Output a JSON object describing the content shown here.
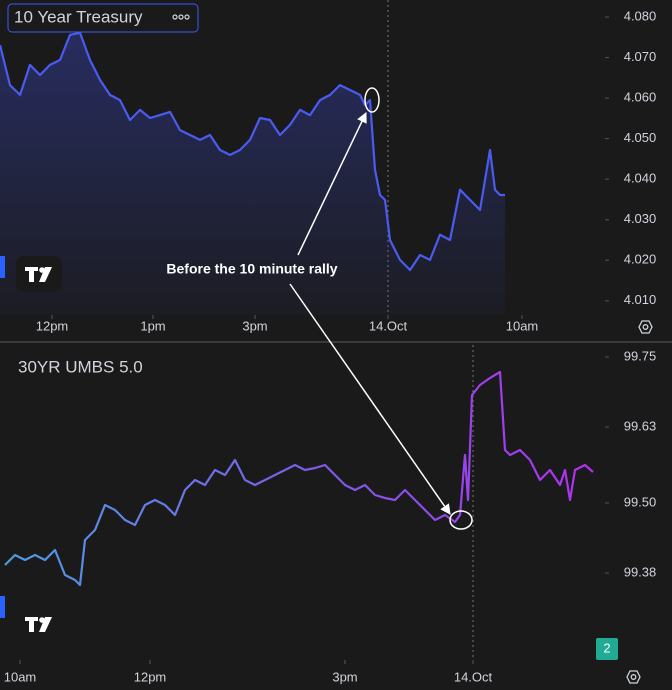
{
  "chart_data": [
    {
      "type": "line",
      "title": "10 Year Treasury",
      "annotation": "Before the 10 minute rally",
      "x": [
        0,
        2,
        4,
        6,
        8,
        10,
        12,
        14,
        16,
        18,
        20,
        22,
        24,
        26,
        28,
        30,
        32,
        34,
        36,
        38,
        40,
        42,
        44,
        46,
        48,
        50,
        52,
        54,
        56,
        58,
        60,
        62,
        64,
        66,
        68,
        70,
        72,
        73,
        74,
        75,
        76,
        77,
        78,
        80,
        82,
        84,
        86,
        88,
        90,
        92,
        94,
        96,
        98,
        99,
        100,
        101
      ],
      "series": [
        {
          "color": "#4a5cf0",
          "values": [
            4.0731,
            4.0632,
            4.0608,
            4.0682,
            4.0657,
            4.0682,
            4.0694,
            4.0756,
            4.0761,
            4.0694,
            4.0645,
            4.0608,
            4.0595,
            4.0546,
            4.0571,
            4.0551,
            4.0558,
            4.0566,
            4.0521,
            4.0509,
            4.0497,
            4.0509,
            4.0472,
            4.046,
            4.0472,
            4.0497,
            4.0551,
            4.0546,
            4.0509,
            4.0534,
            4.0571,
            4.0558,
            4.0595,
            4.0608,
            4.0632,
            4.062,
            4.0608,
            4.0583,
            4.0595,
            4.0423,
            4.0361,
            4.0349,
            4.025,
            4.0201,
            4.0176,
            4.0213,
            4.0201,
            4.0263,
            4.025,
            4.0374,
            4.0349,
            4.0324,
            4.0472,
            4.0374,
            4.0361,
            4.0361
          ]
        }
      ],
      "xlim": [
        0,
        121
      ],
      "xticks": [
        {
          "value": 10.4,
          "label": "12pm"
        },
        {
          "value": 30.6,
          "label": "1pm"
        },
        {
          "value": 51,
          "label": "3pm"
        },
        {
          "value": 77.6,
          "label": "14.Oct"
        },
        {
          "value": 104.4,
          "label": "10am"
        }
      ],
      "session_break": 3,
      "ylim": [
        4.0065,
        4.0842
      ],
      "yticks": [
        {
          "value": 4.08,
          "label": "4.080"
        },
        {
          "value": 4.07,
          "label": "4.070"
        },
        {
          "value": 4.06,
          "label": "4.060"
        },
        {
          "value": 4.05,
          "label": "4.050"
        },
        {
          "value": 4.04,
          "label": "4.040"
        },
        {
          "value": 4.03,
          "label": "4.030"
        },
        {
          "value": 4.02,
          "label": "4.020"
        },
        {
          "value": 4.01,
          "label": "4.010"
        }
      ],
      "area": true
    },
    {
      "type": "line",
      "title": "30YR UMBS 5.0",
      "badge": "2",
      "x": [
        1,
        3,
        5,
        7,
        9,
        11,
        13,
        15,
        16,
        17,
        19,
        21,
        23,
        25,
        27,
        29,
        31,
        33,
        35,
        37,
        39,
        41,
        43,
        45,
        47,
        49,
        51,
        53,
        55,
        57,
        59,
        61,
        63,
        65,
        67,
        69,
        71,
        73,
        75,
        77,
        79,
        81,
        83,
        85,
        87,
        89,
        91,
        92,
        93,
        93.6,
        94.4,
        96,
        98,
        100,
        101,
        102,
        104,
        106,
        108,
        110,
        112,
        113,
        114,
        115,
        117,
        118.6
      ],
      "series": [
        {
          "colors": [
            "#4f9be0",
            "#7a5ee8",
            "#b030f0"
          ],
          "values": [
            99.3938,
            99.411,
            99.4024,
            99.411,
            99.4024,
            99.4195,
            99.3767,
            99.3682,
            99.3596,
            99.4367,
            99.4538,
            99.4966,
            99.488,
            99.4709,
            99.4623,
            99.4966,
            99.5051,
            99.4966,
            99.4795,
            99.5223,
            99.5394,
            99.5308,
            99.5565,
            99.5479,
            99.5736,
            99.5394,
            99.5308,
            99.5394,
            99.5479,
            99.5565,
            99.5651,
            99.5565,
            99.5599,
            99.5651,
            99.5479,
            99.5308,
            99.5223,
            99.5308,
            99.5137,
            99.5086,
            99.5051,
            99.5223,
            99.5051,
            99.488,
            99.4709,
            99.4795,
            99.4675,
            99.4795,
            99.5822,
            99.5051,
            99.6849,
            99.7021,
            99.714,
            99.7243,
            99.5908,
            99.5822,
            99.5908,
            99.5736,
            99.5394,
            99.5565,
            99.5308,
            99.5565,
            99.5051,
            99.5565,
            99.5651,
            99.5531
          ]
        }
      ],
      "xlim": [
        0,
        121
      ],
      "xticks": [
        {
          "value": 4,
          "label": "10am"
        },
        {
          "value": 30,
          "label": "12pm"
        },
        {
          "value": 69,
          "label": "3pm"
        },
        {
          "value": 94.6,
          "label": "14.Oct"
        }
      ],
      "session_break": 3,
      "ylim": [
        99.2312,
        99.7705
      ],
      "yticks": [
        99.75,
        99.63,
        {
          "value": 99.5,
          "label": "99.50"
        },
        99.38
      ],
      "area": false
    }
  ]
}
